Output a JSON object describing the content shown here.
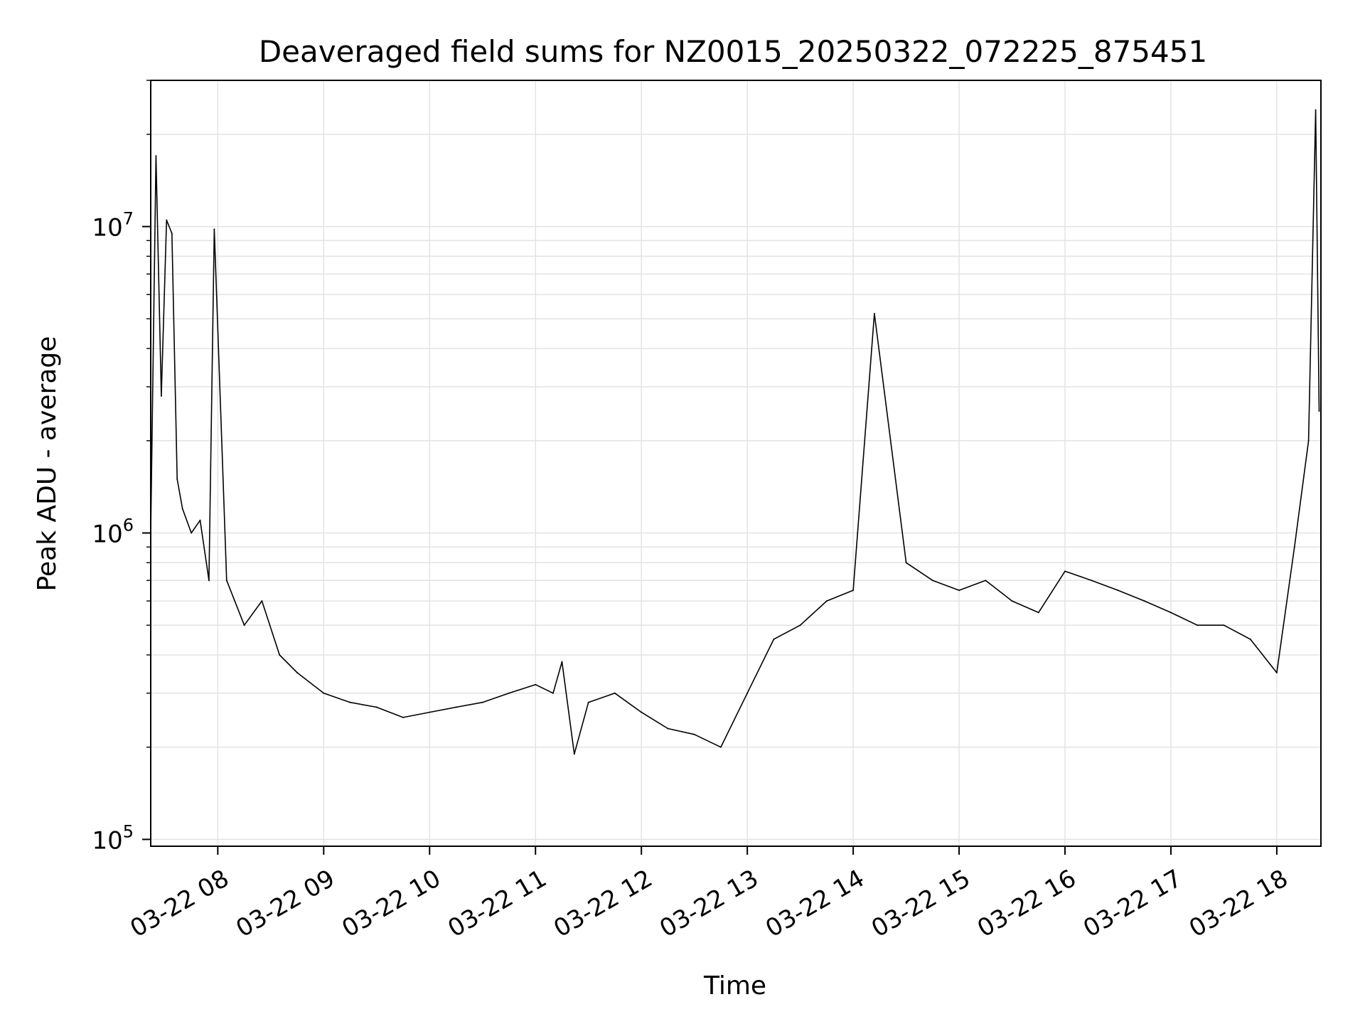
{
  "chart_data": {
    "type": "line",
    "title": "Deaveraged field sums for NZ0015_20250322_072225_875451",
    "xlabel": "Time",
    "ylabel": "Peak ADU - average",
    "yscale": "log",
    "ylim": [
      95000,
      30000000
    ],
    "xlim": [
      "2025-03-22 07:22",
      "2025-03-22 18:25"
    ],
    "grid": true,
    "line_color": "#000000",
    "x_ticks": [
      {
        "value": "2025-03-22 08:00",
        "label": "03-22 08"
      },
      {
        "value": "2025-03-22 09:00",
        "label": "03-22 09"
      },
      {
        "value": "2025-03-22 10:00",
        "label": "03-22 10"
      },
      {
        "value": "2025-03-22 11:00",
        "label": "03-22 11"
      },
      {
        "value": "2025-03-22 12:00",
        "label": "03-22 12"
      },
      {
        "value": "2025-03-22 13:00",
        "label": "03-22 13"
      },
      {
        "value": "2025-03-22 14:00",
        "label": "03-22 14"
      },
      {
        "value": "2025-03-22 15:00",
        "label": "03-22 15"
      },
      {
        "value": "2025-03-22 16:00",
        "label": "03-22 16"
      },
      {
        "value": "2025-03-22 17:00",
        "label": "03-22 17"
      },
      {
        "value": "2025-03-22 18:00",
        "label": "03-22 18"
      }
    ],
    "y_ticks": [
      {
        "value": 100000,
        "base": "10",
        "exp": "5"
      },
      {
        "value": 1000000,
        "base": "10",
        "exp": "6"
      },
      {
        "value": 10000000,
        "base": "10",
        "exp": "7"
      }
    ],
    "series": [
      {
        "x": [
          "2025-03-22 07:22",
          "2025-03-22 07:25",
          "2025-03-22 07:28",
          "2025-03-22 07:31",
          "2025-03-22 07:34",
          "2025-03-22 07:37",
          "2025-03-22 07:40",
          "2025-03-22 07:45",
          "2025-03-22 07:50",
          "2025-03-22 07:55",
          "2025-03-22 07:58",
          "2025-03-22 08:05",
          "2025-03-22 08:15",
          "2025-03-22 08:25",
          "2025-03-22 08:35",
          "2025-03-22 08:45",
          "2025-03-22 09:00",
          "2025-03-22 09:15",
          "2025-03-22 09:30",
          "2025-03-22 09:45",
          "2025-03-22 10:00",
          "2025-03-22 10:15",
          "2025-03-22 10:30",
          "2025-03-22 10:45",
          "2025-03-22 11:00",
          "2025-03-22 11:10",
          "2025-03-22 11:15",
          "2025-03-22 11:22",
          "2025-03-22 11:30",
          "2025-03-22 11:45",
          "2025-03-22 12:00",
          "2025-03-22 12:15",
          "2025-03-22 12:30",
          "2025-03-22 12:45",
          "2025-03-22 13:00",
          "2025-03-22 13:15",
          "2025-03-22 13:30",
          "2025-03-22 13:45",
          "2025-03-22 14:00",
          "2025-03-22 14:12",
          "2025-03-22 14:30",
          "2025-03-22 14:45",
          "2025-03-22 15:00",
          "2025-03-22 15:15",
          "2025-03-22 15:30",
          "2025-03-22 15:45",
          "2025-03-22 16:00",
          "2025-03-22 16:15",
          "2025-03-22 16:30",
          "2025-03-22 16:45",
          "2025-03-22 17:00",
          "2025-03-22 17:15",
          "2025-03-22 17:30",
          "2025-03-22 17:45",
          "2025-03-22 18:00",
          "2025-03-22 18:10",
          "2025-03-22 18:18",
          "2025-03-22 18:22",
          "2025-03-22 18:24"
        ],
        "y": [
          1000000,
          17000000,
          2800000,
          10500000,
          9500000,
          1500000,
          1200000,
          1000000,
          1100000,
          700000,
          9800000,
          700000,
          500000,
          600000,
          400000,
          350000,
          300000,
          280000,
          270000,
          250000,
          260000,
          270000,
          280000,
          300000,
          320000,
          300000,
          380000,
          190000,
          280000,
          300000,
          260000,
          230000,
          220000,
          200000,
          300000,
          450000,
          500000,
          600000,
          650000,
          5200000,
          800000,
          700000,
          650000,
          700000,
          600000,
          550000,
          750000,
          700000,
          650000,
          600000,
          550000,
          500000,
          500000,
          450000,
          350000,
          900000,
          2000000,
          24000000,
          2500000
        ]
      }
    ]
  }
}
